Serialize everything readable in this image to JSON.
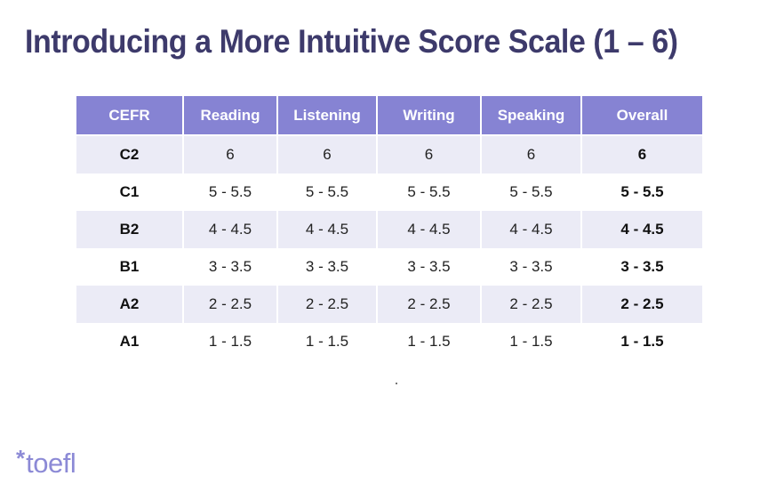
{
  "slide": {
    "title": "Introducing a More Intuitive Score Scale (1 – 6)"
  },
  "table": {
    "headers": [
      "CEFR",
      "Reading",
      "Listening",
      "Writing",
      "Speaking",
      "Overall"
    ],
    "rows": [
      {
        "level": "C2",
        "reading": "6",
        "listening": "6",
        "writing": "6",
        "speaking": "6",
        "overall": "6"
      },
      {
        "level": "C1",
        "reading": "5 - 5.5",
        "listening": "5 - 5.5",
        "writing": "5 - 5.5",
        "speaking": "5 - 5.5",
        "overall": "5 - 5.5"
      },
      {
        "level": "B2",
        "reading": "4 - 4.5",
        "listening": "4 - 4.5",
        "writing": "4 - 4.5",
        "speaking": "4 - 4.5",
        "overall": "4 - 4.5"
      },
      {
        "level": "B1",
        "reading": "3 - 3.5",
        "listening": "3 - 3.5",
        "writing": "3 - 3.5",
        "speaking": "3 - 3.5",
        "overall": "3 - 3.5"
      },
      {
        "level": "A2",
        "reading": "2 - 2.5",
        "listening": "2 - 2.5",
        "writing": "2 - 2.5",
        "speaking": "2 - 2.5",
        "overall": "2 - 2.5"
      },
      {
        "level": "A1",
        "reading": "1 - 1.5",
        "listening": "1 - 1.5",
        "writing": "1 - 1.5",
        "speaking": "1 - 1.5",
        "overall": "1 - 1.5"
      }
    ]
  },
  "logo": {
    "mark": "*",
    "text": "toefl"
  },
  "colors": {
    "title": "#3d3a6b",
    "header_bg": "#8683d3",
    "row_shade": "#ebebf6",
    "logo": "#8c8ad6"
  }
}
